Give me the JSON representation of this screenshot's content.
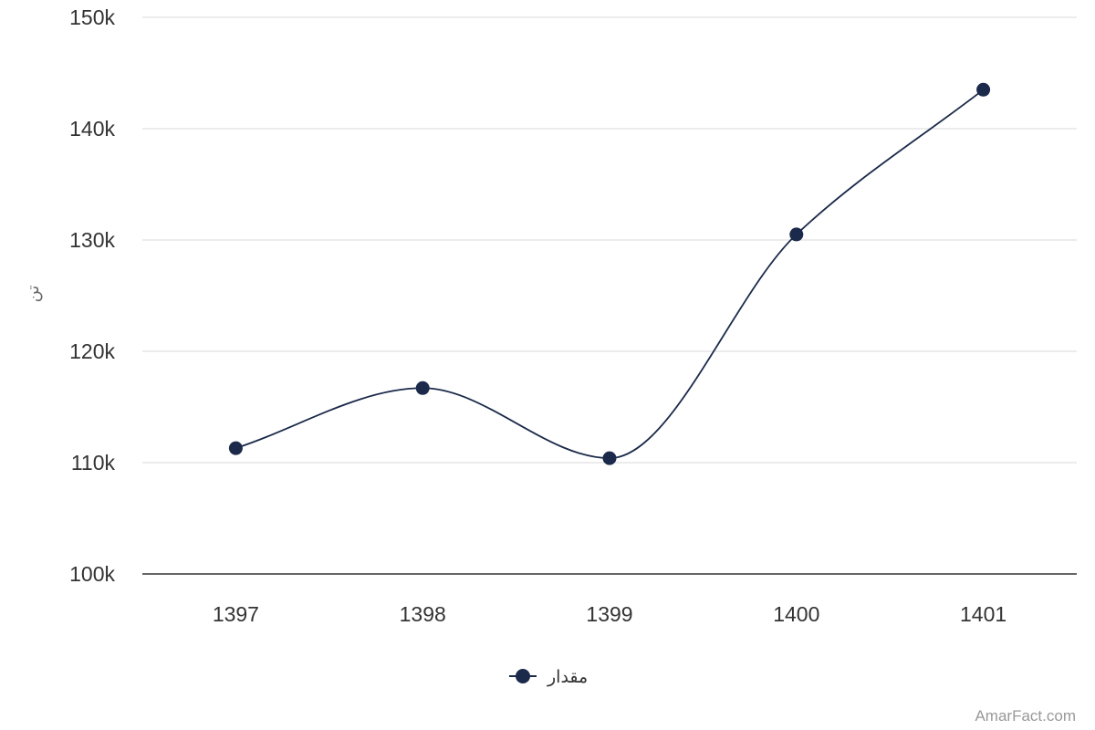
{
  "chart_data": {
    "type": "line",
    "smooth": true,
    "categories": [
      "1397",
      "1398",
      "1399",
      "1400",
      "1401"
    ],
    "series": [
      {
        "name": "مقدار",
        "values": [
          111300,
          116700,
          110400,
          130500,
          143500
        ]
      }
    ],
    "ylabel": "تن",
    "ylim": [
      100000,
      150000
    ],
    "yticks": [
      100000,
      110000,
      120000,
      130000,
      140000,
      150000
    ],
    "ytick_labels": [
      "100k",
      "110k",
      "120k",
      "130k",
      "140k",
      "150k"
    ],
    "grid": true,
    "legend": "bottom-center",
    "colors": {
      "series": "#1b2a4a",
      "grid": "#e6e6e6",
      "axis": "#333333",
      "text": "#333333"
    }
  },
  "credit": "AmarFact.com"
}
